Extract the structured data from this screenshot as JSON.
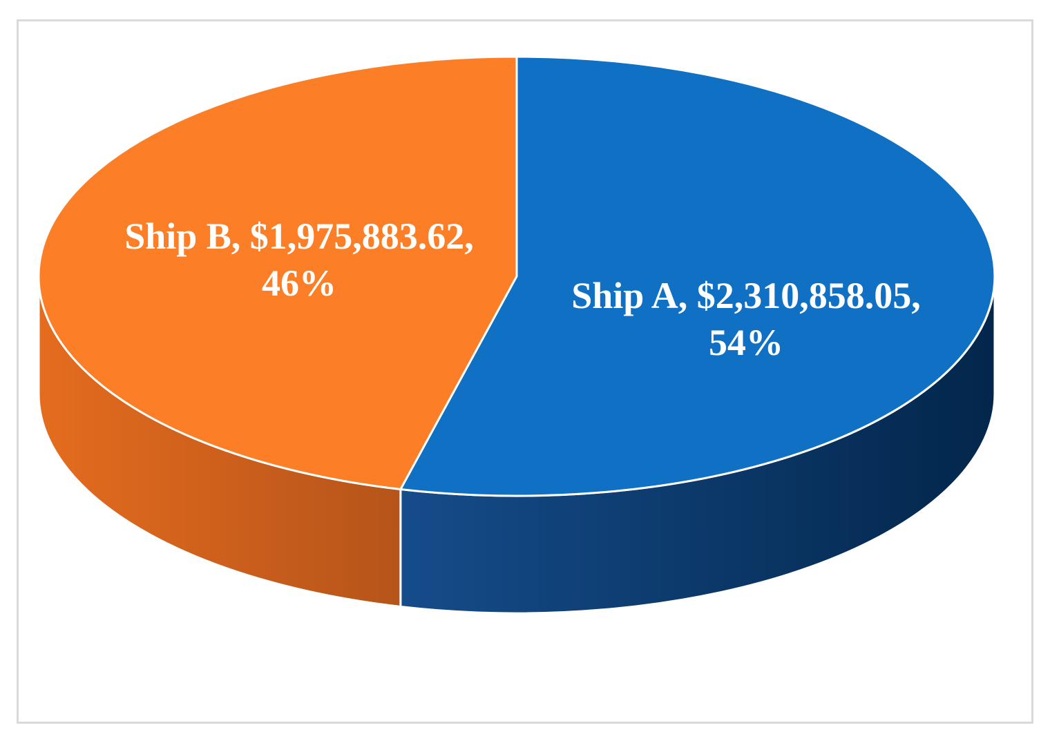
{
  "chart_data": {
    "type": "pie",
    "style": "3d",
    "slices": [
      {
        "name": "Ship A",
        "value": 2310858.05,
        "percent": 54,
        "label_line1": "Ship A, $2,310,858.05,",
        "label_line2": "54%",
        "color": "#0f70c4",
        "side_color_light": "#154c8a",
        "side_color_dark": "#03264b"
      },
      {
        "name": "Ship B",
        "value": 1975883.62,
        "percent": 46,
        "label_line1": "Ship B, $1,975,883.62,",
        "label_line2": "46%",
        "color": "#fc7f27",
        "side_color_light": "#e46c1e",
        "side_color_dark": "#b6541a"
      }
    ],
    "legend": "none",
    "title": ""
  }
}
